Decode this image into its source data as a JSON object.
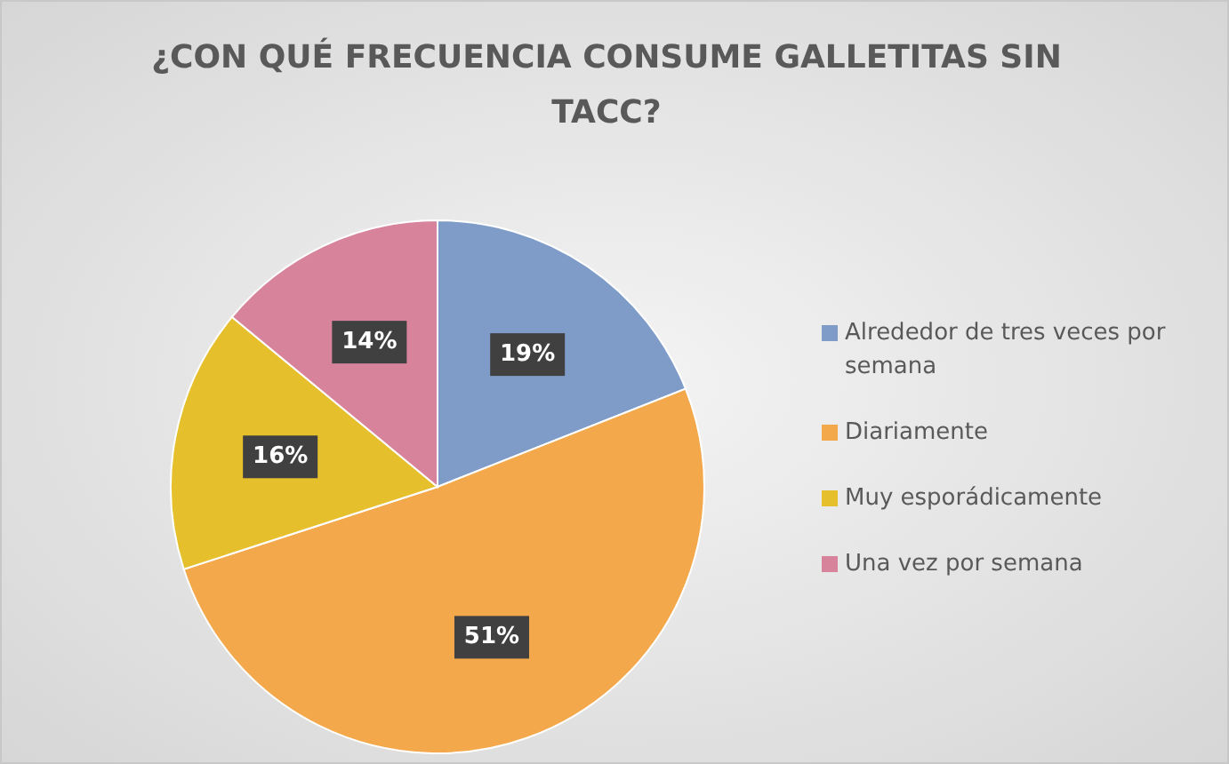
{
  "chart_data": {
    "type": "pie",
    "title": "¿CON QUÉ FRECUENCIA CONSUME GALLETITAS SIN TACC?",
    "categories": [
      "Alrededor de tres veces por semana",
      "Diariamente",
      "Muy esporádicamente",
      "Una vez por semana"
    ],
    "values": [
      19,
      51,
      16,
      14
    ],
    "value_labels": [
      "19%",
      "51%",
      "16%",
      "14%"
    ],
    "colors": [
      "#7f9cc9",
      "#f4a84c",
      "#e6bf2c",
      "#d8839c"
    ],
    "legend": "right"
  }
}
